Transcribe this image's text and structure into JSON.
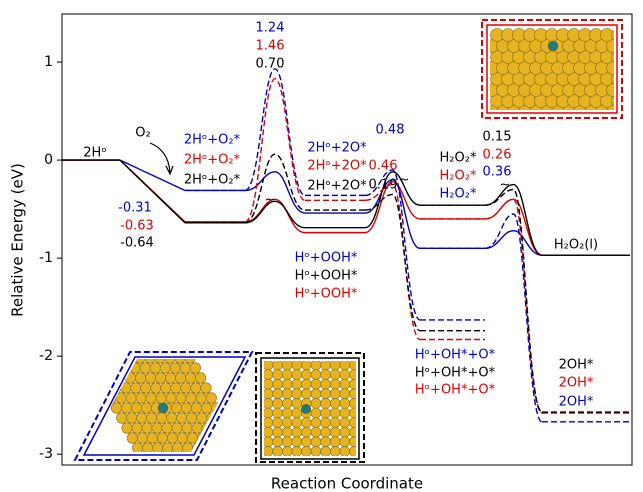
{
  "chart_data": {
    "type": "energy-diagram",
    "ylabel": "Relative Energy (eV)",
    "xlabel": "Reaction Coordinate",
    "ylim": [
      -3.11,
      1.49
    ],
    "yticks": [
      -3,
      -2,
      -1,
      0,
      1
    ],
    "series": [
      {
        "color": "#0000cc",
        "dashed": false,
        "values": [
          0,
          -0.31,
          -0.54,
          -0.9,
          -0.97
        ],
        "ts": [
          null,
          -0.12,
          -0.2,
          -0.72
        ]
      },
      {
        "color": "#e00000",
        "dashed": false,
        "values": [
          0,
          -0.63,
          -0.74,
          -0.6,
          -0.97
        ],
        "ts": [
          null,
          -0.4,
          -0.22,
          -0.4
        ]
      },
      {
        "color": "#000000",
        "dashed": false,
        "values": [
          0,
          -0.64,
          -0.69,
          -0.46,
          -0.97
        ],
        "ts": [
          null,
          -0.42,
          -0.12,
          -0.25
        ]
      },
      {
        "color": "#0000cc",
        "dashed": true,
        "values": [
          null,
          -0.31,
          -0.36,
          -1.63,
          null
        ],
        "ts": [
          null,
          0.93,
          -0.1,
          null
        ]
      },
      {
        "color": "#e00000",
        "dashed": true,
        "values": [
          null,
          -0.63,
          -0.41,
          -1.83,
          null
        ],
        "ts": [
          null,
          0.83,
          -0.25,
          null
        ]
      },
      {
        "color": "#000000",
        "dashed": true,
        "values": [
          null,
          -0.64,
          -0.51,
          -1.74,
          null
        ],
        "ts": [
          null,
          0.06,
          -0.35,
          null
        ]
      },
      {
        "color": "#0000cc",
        "dashed": true,
        "values": [
          null,
          null,
          null,
          -0.9,
          -2.67
        ],
        "ts": [
          null,
          null,
          null,
          -0.55
        ]
      },
      {
        "color": "#e00000",
        "dashed": true,
        "values": [
          null,
          null,
          null,
          -0.6,
          -2.58
        ],
        "ts": [
          null,
          null,
          null,
          -0.4
        ]
      },
      {
        "color": "#000000",
        "dashed": true,
        "values": [
          null,
          null,
          null,
          -0.46,
          -2.57
        ],
        "ts": [
          null,
          null,
          null,
          -0.3
        ]
      }
    ],
    "annotations": [
      {
        "text": "2Hᵒ",
        "color": "#000000"
      },
      {
        "text": "O₂",
        "color": "#000000"
      },
      {
        "text": "2Hᵒ+O₂*",
        "color": "#0000cc"
      },
      {
        "text": "2Hᵒ+O₂*",
        "color": "#e00000"
      },
      {
        "text": "2Hᵒ+O₂*",
        "color": "#000000"
      },
      {
        "text": "-0.31",
        "color": "#0000cc"
      },
      {
        "text": "-0.63",
        "color": "#e00000"
      },
      {
        "text": "-0.64",
        "color": "#000000"
      },
      {
        "text": "1.24",
        "color": "#0000cc"
      },
      {
        "text": "1.46",
        "color": "#e00000"
      },
      {
        "text": "0.70",
        "color": "#000000"
      },
      {
        "text": "2Hᵒ+2O*",
        "color": "#0000cc"
      },
      {
        "text": "2Hᵒ+2O*",
        "color": "#e00000"
      },
      {
        "text": "2Hᵒ+2O*",
        "color": "#000000"
      },
      {
        "text": "0.48",
        "color": "#0000cc"
      },
      {
        "text": "0.46",
        "color": "#e00000"
      },
      {
        "text": "0.19",
        "color": "#000000"
      },
      {
        "text": "Hᵒ+OOH*",
        "color": "#0000cc"
      },
      {
        "text": "Hᵒ+OOH*",
        "color": "#000000"
      },
      {
        "text": "Hᵒ+OOH*",
        "color": "#e00000"
      },
      {
        "text": "H₂O₂*",
        "color": "#000000"
      },
      {
        "text": "H₂O₂*",
        "color": "#e00000"
      },
      {
        "text": "H₂O₂*",
        "color": "#0000cc"
      },
      {
        "text": "0.15",
        "color": "#000000"
      },
      {
        "text": "0.26",
        "color": "#e00000"
      },
      {
        "text": "0.36",
        "color": "#0000cc"
      },
      {
        "text": "H₂O₂(l)",
        "color": "#000000"
      },
      {
        "text": "Hᵒ+OH*+O*",
        "color": "#0000cc"
      },
      {
        "text": "Hᵒ+OH*+O*",
        "color": "#000000"
      },
      {
        "text": "Hᵒ+OH*+O*",
        "color": "#e00000"
      },
      {
        "text": "2OH*",
        "color": "#000000"
      },
      {
        "text": "2OH*",
        "color": "#e00000"
      },
      {
        "text": "2OH*",
        "color": "#0000cc"
      },
      {
        "text": "~",
        "color": "#000000"
      },
      {
        "text": "~",
        "color": "#000000"
      },
      {
        "text": "~",
        "color": "#000000"
      }
    ]
  }
}
